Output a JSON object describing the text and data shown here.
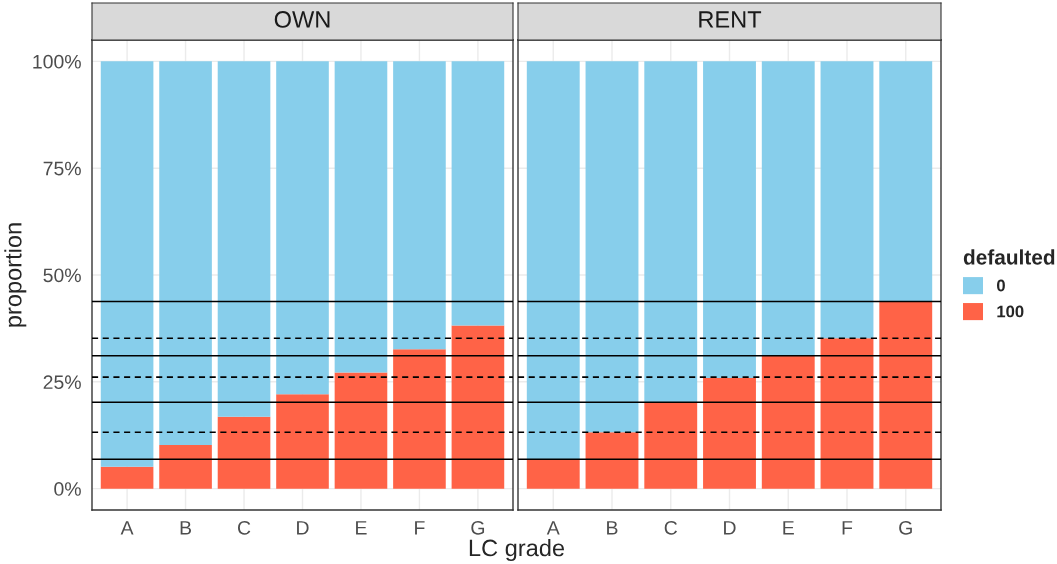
{
  "chart_data": [
    {
      "type": "bar",
      "title": "OWN",
      "xlabel": "LC grade",
      "ylabel": "proportion",
      "stacked": true,
      "grid": true,
      "legend": "right",
      "legend_title": "defaulted",
      "categories": [
        "A",
        "B",
        "C",
        "D",
        "E",
        "F",
        "G"
      ],
      "series": [
        {
          "name": "100",
          "color": "#ff6347",
          "values": [
            5.1,
            10.2,
            16.8,
            22.1,
            27.2,
            32.6,
            38.2
          ]
        },
        {
          "name": "0",
          "color": "#87ceeb",
          "values": [
            94.9,
            89.8,
            83.2,
            77.9,
            72.8,
            67.4,
            61.8
          ]
        }
      ],
      "ylim": [
        -5,
        105
      ],
      "yticks": [
        {
          "value": 0,
          "label": "0%"
        },
        {
          "value": 25,
          "label": "25%"
        },
        {
          "value": 50,
          "label": "50%"
        },
        {
          "value": 75,
          "label": "75%"
        },
        {
          "value": 100,
          "label": "100%"
        }
      ],
      "ref_lines": [
        {
          "axis": "y",
          "value": 43.8,
          "line_style": "solid",
          "color": "#000000"
        },
        {
          "axis": "y",
          "value": 31.1,
          "line_style": "solid",
          "color": "#000000"
        },
        {
          "axis": "y",
          "value": 20.2,
          "line_style": "solid",
          "color": "#000000"
        },
        {
          "axis": "y",
          "value": 6.9,
          "line_style": "solid",
          "color": "#000000"
        },
        {
          "axis": "y",
          "value": 35.2,
          "line_style": "dashed",
          "color": "#000000"
        },
        {
          "axis": "y",
          "value": 26.1,
          "line_style": "dashed",
          "color": "#000000"
        },
        {
          "axis": "y",
          "value": 13.2,
          "line_style": "dashed",
          "color": "#000000"
        }
      ]
    },
    {
      "type": "bar",
      "title": "RENT",
      "stacked": true,
      "grid": true,
      "tick_labels": "x",
      "categories": [
        "A",
        "B",
        "C",
        "D",
        "E",
        "F",
        "G"
      ],
      "series": [
        {
          "name": "100",
          "color": "#ff6347",
          "values": [
            6.9,
            13.2,
            20.2,
            25.9,
            31.1,
            35.2,
            43.8
          ]
        },
        {
          "name": "0",
          "color": "#87ceeb",
          "values": [
            93.1,
            86.8,
            79.8,
            74.1,
            68.9,
            64.8,
            56.2
          ]
        }
      ],
      "ylim": [
        -5,
        105
      ],
      "yticks": [
        {
          "value": 0,
          "label": null
        },
        {
          "value": 25,
          "label": null
        },
        {
          "value": 50,
          "label": null
        },
        {
          "value": 75,
          "label": null
        },
        {
          "value": 100,
          "label": null
        }
      ],
      "ref_lines": [
        {
          "axis": "y",
          "value": 43.8,
          "line_style": "solid",
          "color": "#000000"
        },
        {
          "axis": "y",
          "value": 31.1,
          "line_style": "solid",
          "color": "#000000"
        },
        {
          "axis": "y",
          "value": 20.2,
          "line_style": "solid",
          "color": "#000000"
        },
        {
          "axis": "y",
          "value": 6.9,
          "line_style": "solid",
          "color": "#000000"
        },
        {
          "axis": "y",
          "value": 35.2,
          "line_style": "dashed",
          "color": "#000000"
        },
        {
          "axis": "y",
          "value": 26.1,
          "line_style": "dashed",
          "color": "#000000"
        },
        {
          "axis": "y",
          "value": 13.2,
          "line_style": "dashed",
          "color": "#000000"
        }
      ]
    }
  ]
}
